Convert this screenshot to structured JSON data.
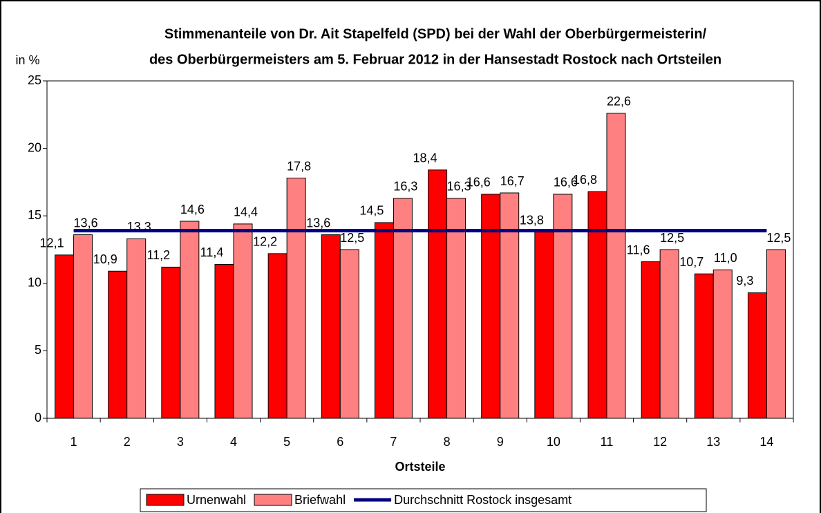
{
  "chart_data": {
    "type": "bar",
    "title": [
      "Stimmenanteile von Dr. Ait Stapelfeld (SPD) bei der Wahl der Oberbürgermeisterin/",
      "des Oberbürgermeisters am 5. Februar 2012 in der Hansestadt Rostock nach Ortsteilen"
    ],
    "y_label": "in %",
    "x_label": "Ortsteile",
    "categories": [
      "1",
      "2",
      "3",
      "4",
      "5",
      "6",
      "7",
      "8",
      "9",
      "10",
      "11",
      "12",
      "13",
      "14"
    ],
    "series": [
      {
        "name": "Urnenwahl",
        "color": "#ff0000",
        "type": "bar",
        "values": [
          12.1,
          10.9,
          11.2,
          11.4,
          12.2,
          13.6,
          14.5,
          18.4,
          16.6,
          13.8,
          16.8,
          11.6,
          10.7,
          9.3
        ],
        "value_labels": [
          "12,1",
          "10,9",
          "11,2",
          "11,4",
          "12,2",
          "13,6",
          "14,5",
          "18,4",
          "16,6",
          "13,8",
          "16,8",
          "11,6",
          "10,7",
          "9,3"
        ]
      },
      {
        "name": "Briefwahl",
        "color": "#ff8080",
        "type": "bar",
        "values": [
          13.6,
          13.3,
          14.6,
          14.4,
          17.8,
          12.5,
          16.3,
          16.3,
          16.7,
          16.6,
          22.6,
          12.5,
          11.0,
          12.5
        ],
        "value_labels": [
          "13,6",
          "13,3",
          "14,6",
          "14,4",
          "17,8",
          "12,5",
          "16,3",
          "16,3",
          "16,7",
          "16,6",
          "22,6",
          "12,5",
          "11,0",
          "12,5"
        ]
      },
      {
        "name": "Durchschnitt Rostock insgesamt",
        "color": "#000080",
        "type": "line",
        "values": [
          13.9,
          13.9,
          13.9,
          13.9,
          13.9,
          13.9,
          13.9,
          13.9,
          13.9,
          13.9,
          13.9,
          13.9,
          13.9,
          13.9
        ]
      }
    ],
    "ylim": [
      0,
      25
    ],
    "yticks": [
      0,
      5,
      10,
      15,
      20,
      25
    ],
    "grid": false,
    "legend": "bottom"
  }
}
